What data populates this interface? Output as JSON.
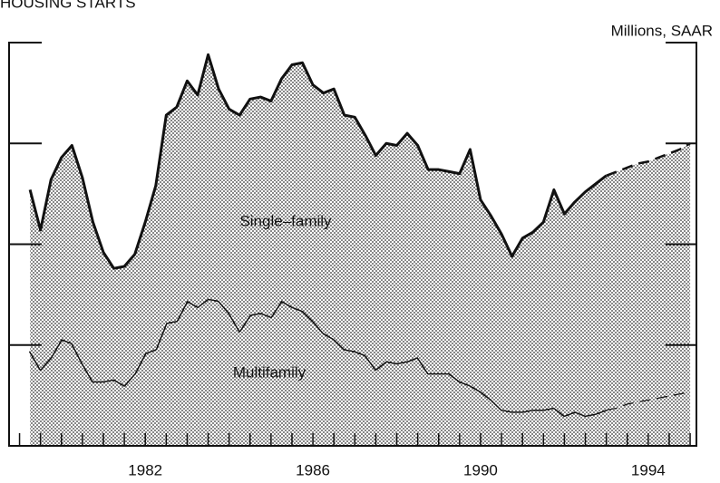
{
  "chart_data": {
    "type": "stacked_area",
    "title": "HOUSING STARTS",
    "y_label": "Millions, SAAR",
    "annotations": [
      "Single–family",
      "Multifamily"
    ],
    "x": [
      1979.25,
      1979.5,
      1979.75,
      1980,
      1980.25,
      1980.5,
      1980.75,
      1981,
      1981.25,
      1981.5,
      1981.75,
      1982,
      1982.25,
      1982.5,
      1982.75,
      1983,
      1983.25,
      1983.5,
      1983.75,
      1984,
      1984.25,
      1984.5,
      1984.75,
      1985,
      1985.25,
      1985.5,
      1985.75,
      1986,
      1986.25,
      1986.5,
      1986.75,
      1987,
      1987.25,
      1987.5,
      1987.75,
      1988,
      1988.25,
      1988.5,
      1988.75,
      1989,
      1989.25,
      1989.5,
      1989.75,
      1990,
      1990.25,
      1990.5,
      1990.75,
      1991,
      1991.25,
      1991.5,
      1991.75,
      1992,
      1992.25,
      1992.5,
      1992.75,
      1993,
      1993.25,
      1993.5,
      1993.75,
      1994,
      1994.25,
      1994.5,
      1994.75,
      1995
    ],
    "series": [
      {
        "name": "Multifamily",
        "color": "#111111",
        "values": [
          0.47,
          0.38,
          0.44,
          0.53,
          0.51,
          0.41,
          0.32,
          0.32,
          0.33,
          0.3,
          0.36,
          0.46,
          0.48,
          0.61,
          0.62,
          0.72,
          0.69,
          0.73,
          0.72,
          0.66,
          0.57,
          0.65,
          0.66,
          0.64,
          0.72,
          0.69,
          0.67,
          0.62,
          0.56,
          0.53,
          0.48,
          0.47,
          0.45,
          0.38,
          0.42,
          0.41,
          0.42,
          0.44,
          0.36,
          0.36,
          0.36,
          0.32,
          0.3,
          0.27,
          0.23,
          0.18,
          0.17,
          0.17,
          0.18,
          0.18,
          0.19,
          0.15,
          0.17,
          0.15,
          0.16,
          0.18,
          0.19,
          0.21,
          0.22,
          0.23,
          0.24,
          0.25,
          0.26,
          0.27
        ]
      },
      {
        "name": "Single–family",
        "color": "#111111",
        "values": [
          0.8,
          0.69,
          0.88,
          0.9,
          0.98,
          0.92,
          0.79,
          0.64,
          0.55,
          0.59,
          0.59,
          0.65,
          0.81,
          1.03,
          1.06,
          1.09,
          1.05,
          1.21,
          1.05,
          1.01,
          1.07,
          1.07,
          1.07,
          1.07,
          1.1,
          1.2,
          1.23,
          1.17,
          1.19,
          1.24,
          1.16,
          1.16,
          1.09,
          1.06,
          1.08,
          1.08,
          1.13,
          1.05,
          1.01,
          1.01,
          1.0,
          1.03,
          1.17,
          0.95,
          0.91,
          0.87,
          0.77,
          0.86,
          0.88,
          0.93,
          1.08,
          1.0,
          1.04,
          1.11,
          1.14,
          1.16,
          1.17,
          1.17,
          1.18,
          1.18,
          1.19,
          1.2,
          1.21,
          1.23
        ]
      }
    ],
    "dashed_from": 1993,
    "xlim": [
      1978.75,
      1995.15
    ],
    "xticks": [
      1982,
      1986,
      1990,
      1994
    ],
    "ylim": [
      0,
      2
    ],
    "yticks": [
      0,
      0.5,
      1,
      1.5,
      2
    ],
    "fill": "dotted"
  }
}
